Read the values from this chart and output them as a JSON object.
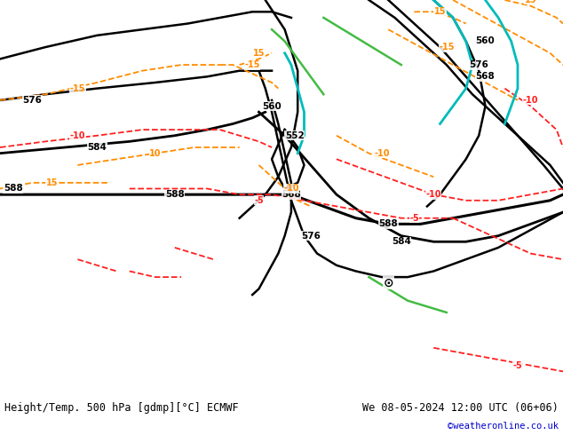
{
  "title_left": "Height/Temp. 500 hPa [gdmp][°C] ECMWF",
  "title_right": "We 08-05-2024 12:00 UTC (06+06)",
  "credit": "©weatheronline.co.uk",
  "bg_color": "#cce5f0",
  "land_color_green": "#c8eab4",
  "land_color_gray": "#c8c8c8",
  "border_color": "#a0a0a0",
  "fig_width": 6.34,
  "fig_height": 4.9,
  "dpi": 100,
  "bottom_text_color": "#000000",
  "credit_color": "#0000cc",
  "lon_min": 88,
  "lon_max": 175,
  "lat_min": -12,
  "lat_max": 55,
  "z500_color": "#000000",
  "temp_neg_color": "#ff2020",
  "temp_pos_color": "#ff8c00",
  "cyan_color": "#00bbbb",
  "green_color": "#44bb44"
}
